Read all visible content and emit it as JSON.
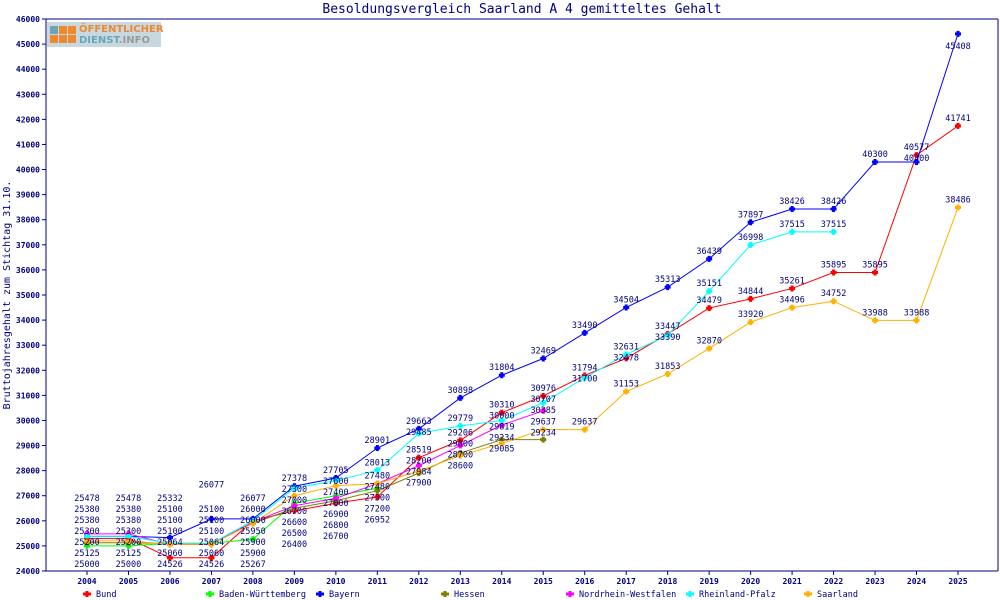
{
  "chart_data": {
    "type": "line",
    "title": "Besoldungsvergleich Saarland A 4 gemitteltes Gehalt",
    "xlabel": "",
    "ylabel": "Bruttojahresgehalt zum Stichtag 31.10.",
    "ylim": [
      24000,
      46000
    ],
    "yticks": [
      24000,
      25000,
      26000,
      27000,
      28000,
      29000,
      30000,
      31000,
      32000,
      33000,
      34000,
      35000,
      36000,
      37000,
      38000,
      39000,
      40000,
      41000,
      42000,
      43000,
      44000,
      45000,
      46000
    ],
    "x": [
      2004,
      2005,
      2006,
      2007,
      2008,
      2009,
      2010,
      2011,
      2012,
      2013,
      2014,
      2015,
      2016,
      2017,
      2018,
      2019,
      2020,
      2021,
      2022,
      2023,
      2024,
      2025
    ],
    "grid": false,
    "legend": "bottom",
    "series": [
      {
        "name": "Bund",
        "color": "#ff0000",
        "values": [
          25300,
          25300,
          24526,
          24526,
          26000,
          26400,
          26700,
          26952,
          28519,
          29206,
          30310,
          30976,
          31794,
          32478,
          33447,
          34479,
          34844,
          35261,
          35895,
          35895,
          40577,
          41741
        ]
      },
      {
        "name": "Baden-Württemberg",
        "color": "#00ff00",
        "values": [
          25000,
          25000,
          25100,
          25100,
          25267,
          26700,
          27000,
          27300,
          null,
          null,
          null,
          null,
          null,
          null,
          null,
          null,
          null,
          null,
          null,
          null,
          null,
          null
        ]
      },
      {
        "name": "Bayern",
        "color": "#0000ff",
        "values": [
          25380,
          25380,
          25332,
          26077,
          26077,
          27378,
          27705,
          28901,
          29663,
          30898,
          31804,
          32469,
          33490,
          34504,
          35313,
          36439,
          37897,
          38426,
          38426,
          40300,
          40300,
          45408
        ]
      },
      {
        "name": "Hessen",
        "color": "#808000",
        "values": [
          25125,
          25125,
          25100,
          25100,
          25900,
          26500,
          26800,
          27200,
          27900,
          28700,
          29234,
          29234,
          null,
          null,
          null,
          null,
          null,
          null,
          null,
          null,
          null,
          null
        ]
      },
      {
        "name": "Nordrhein-Westfalen",
        "color": "#ff00ff",
        "values": [
          25478,
          25478,
          25060,
          25060,
          25950,
          26600,
          26900,
          27480,
          28200,
          29000,
          29819,
          30385,
          null,
          null,
          null,
          null,
          null,
          null,
          null,
          null,
          null,
          null
        ]
      },
      {
        "name": "Rheinland-Pfalz",
        "color": "#00ffff",
        "values": [
          25380,
          25380,
          25100,
          25100,
          26000,
          27300,
          27600,
          28013,
          29485,
          29779,
          30000,
          30707,
          31700,
          32631,
          33390,
          35151,
          36998,
          37515,
          37515,
          null,
          null,
          null
        ]
      },
      {
        "name": "Saarland",
        "color": "#ffb000",
        "values": [
          25200,
          25200,
          25064,
          25064,
          25900,
          27000,
          27400,
          27480,
          27984,
          28600,
          29085,
          29637,
          29637,
          31153,
          31853,
          32870,
          33920,
          34496,
          34752,
          33988,
          33988,
          38486
        ]
      }
    ]
  },
  "logo": {
    "line1": "ÖFFENTLICHER",
    "line2a": "DIENST",
    "line2b": ".INFO"
  }
}
